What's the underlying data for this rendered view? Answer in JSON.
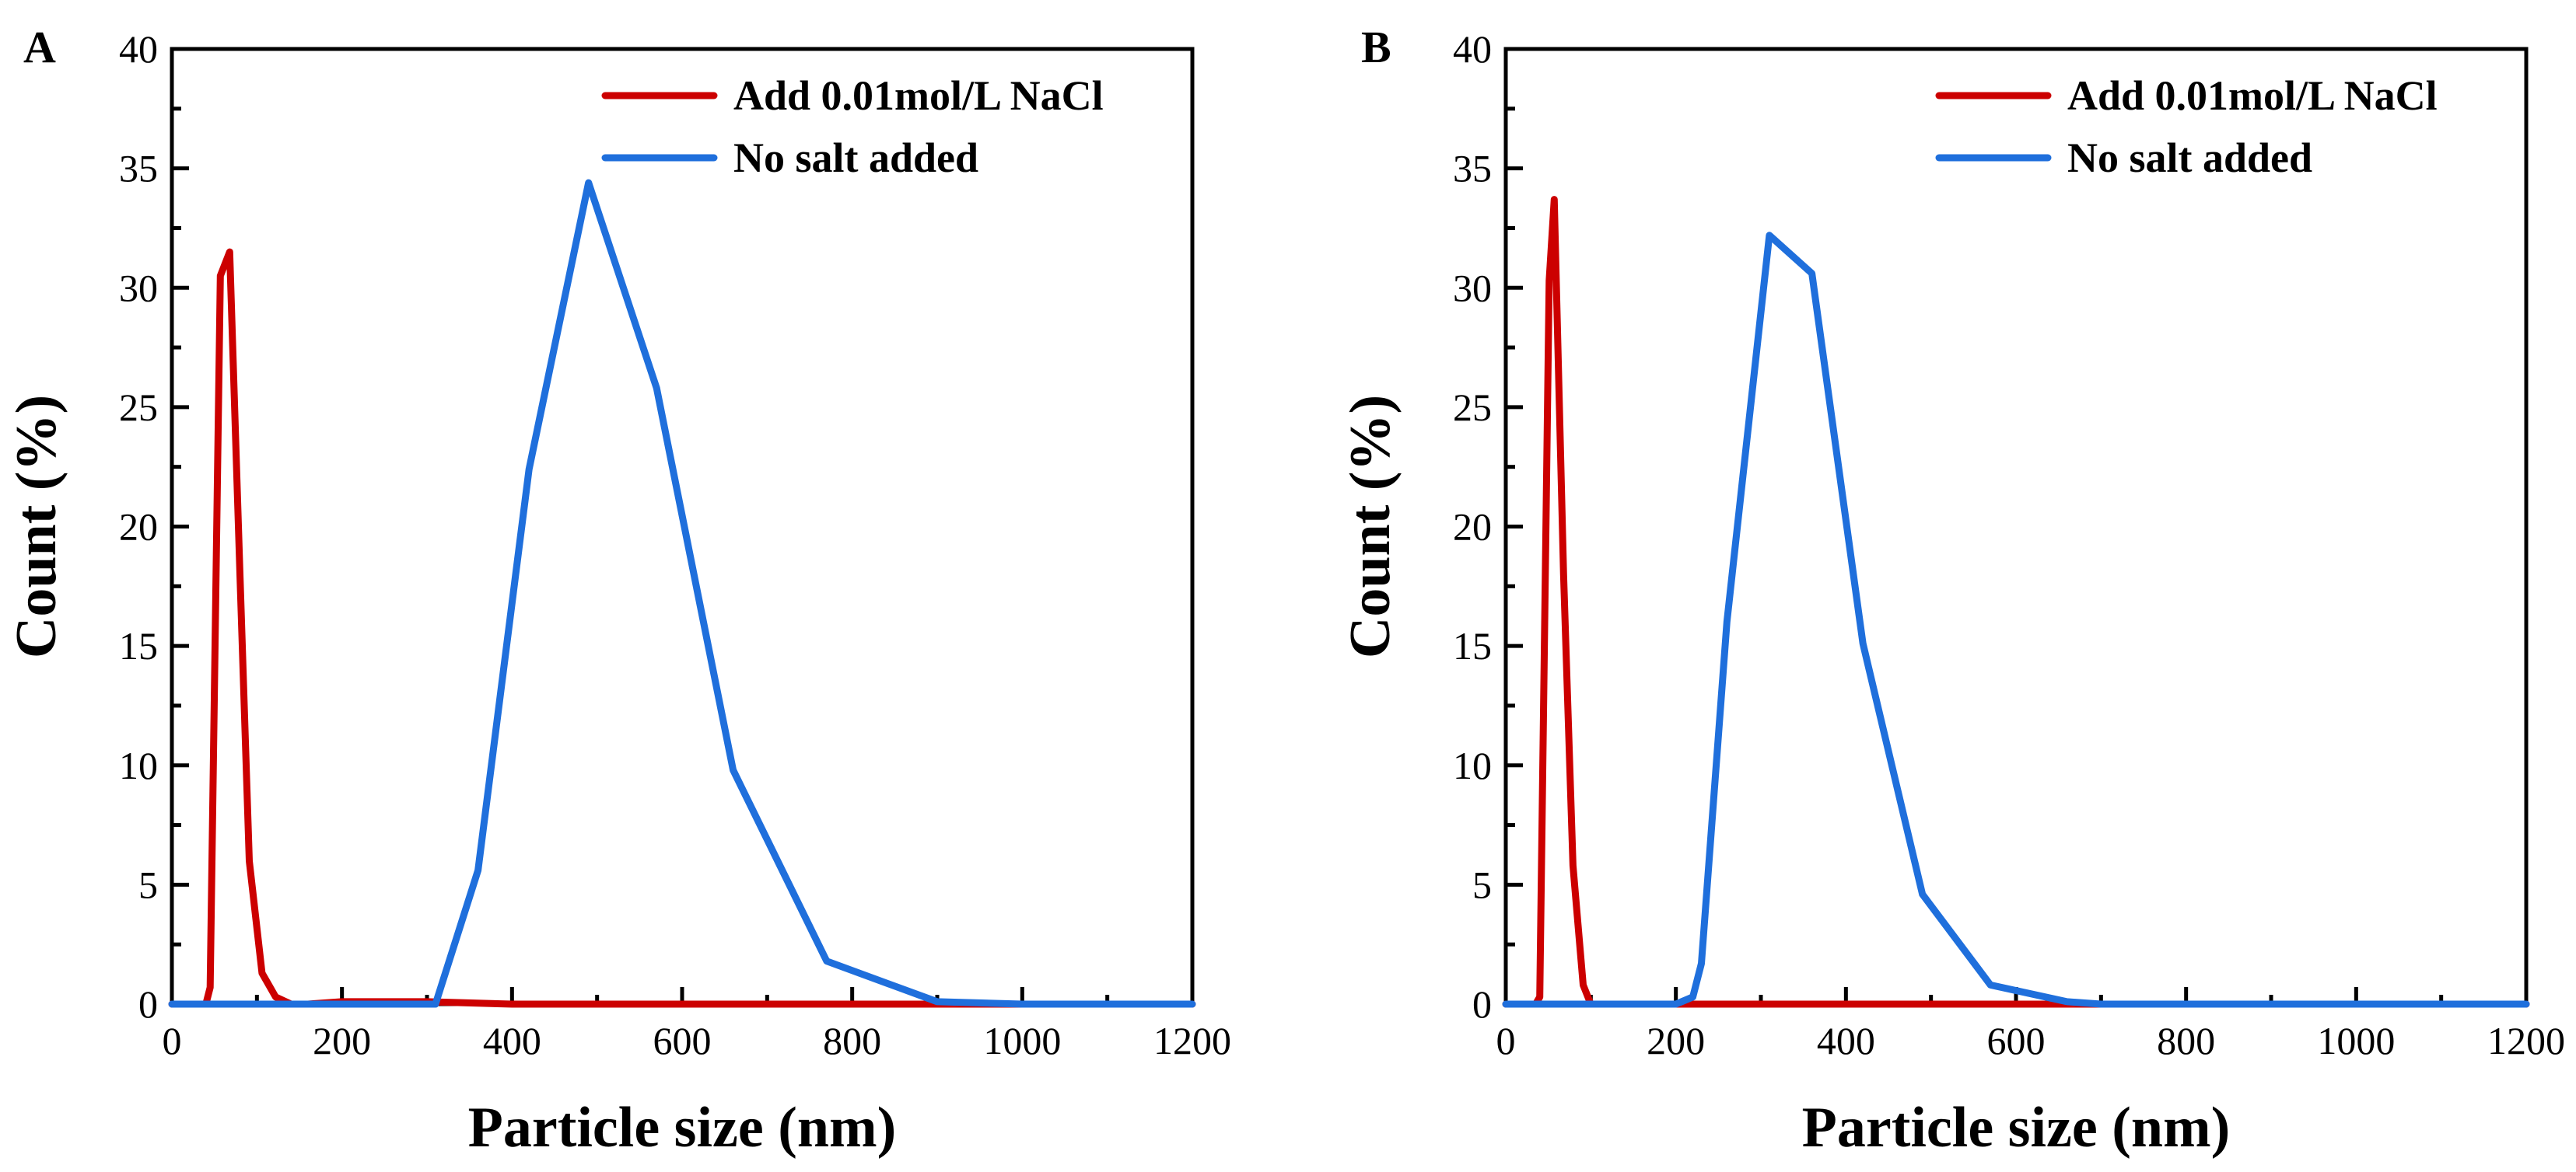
{
  "chart_data": [
    {
      "panel_label": "A",
      "type": "line",
      "xlabel": "Particle size (nm)",
      "ylabel": "Count (%)",
      "xlim": [
        0,
        1200
      ],
      "ylim": [
        0,
        40
      ],
      "xticks": [
        0,
        200,
        400,
        600,
        800,
        1000,
        1200
      ],
      "xtick_labels": [
        "0",
        "200",
        "400",
        "600",
        "800",
        "1000",
        "1200"
      ],
      "yticks": [
        0,
        5,
        10,
        15,
        20,
        25,
        30,
        35,
        40
      ],
      "ytick_labels": [
        "0",
        "5",
        "10",
        "15",
        "20",
        "25",
        "30",
        "35",
        "40"
      ],
      "legend_position": "top-right",
      "series": [
        {
          "name": "Add 0.01mol/L NaCl",
          "color": "#cc0000",
          "x": [
            0,
            40,
            45,
            57,
            68,
            80,
            91,
            106,
            122,
            140,
            160,
            200,
            250,
            300,
            400,
            500,
            600,
            800,
            1000,
            1200
          ],
          "y": [
            0,
            0,
            0.7,
            30.5,
            31.5,
            18,
            6,
            1.3,
            0.3,
            0,
            0,
            0.1,
            0.1,
            0.1,
            0,
            0,
            0,
            0,
            0,
            0
          ]
        },
        {
          "name": "No salt added",
          "color": "#1f6fdc",
          "x": [
            0,
            100,
            200,
            310,
            360,
            420,
            490,
            570,
            660,
            770,
            900,
            1000,
            1200
          ],
          "y": [
            0,
            0,
            0,
            0,
            5.6,
            22.4,
            34.4,
            25.8,
            9.8,
            1.8,
            0.1,
            0,
            0
          ]
        }
      ]
    },
    {
      "panel_label": "B",
      "type": "line",
      "xlabel": "Particle size (nm)",
      "ylabel": "Count (%)",
      "xlim": [
        0,
        1200
      ],
      "ylim": [
        0,
        40
      ],
      "xticks": [
        0,
        200,
        400,
        600,
        800,
        1000,
        1200
      ],
      "xtick_labels": [
        "0",
        "200",
        "400",
        "600",
        "800",
        "1000",
        "1200"
      ],
      "yticks": [
        0,
        5,
        10,
        15,
        20,
        25,
        30,
        35,
        40
      ],
      "ytick_labels": [
        "0",
        "5",
        "10",
        "15",
        "20",
        "25",
        "30",
        "35",
        "40"
      ],
      "legend_position": "top-right",
      "series": [
        {
          "name": "Add 0.01mol/L NaCl",
          "color": "#cc0000",
          "x": [
            0,
            35,
            40,
            51,
            57,
            68,
            79,
            91,
            100,
            200,
            400,
            600,
            800,
            1000,
            1200
          ],
          "y": [
            0,
            0,
            0.3,
            30.3,
            33.7,
            18,
            5.8,
            0.8,
            0,
            0,
            0,
            0,
            0,
            0,
            0
          ]
        },
        {
          "name": "No salt added",
          "color": "#1f6fdc",
          "x": [
            0,
            100,
            200,
            220,
            230,
            260,
            310,
            360,
            420,
            490,
            570,
            660,
            700,
            800,
            1000,
            1200
          ],
          "y": [
            0,
            0,
            0,
            0.3,
            1.7,
            16,
            32.2,
            30.6,
            15.1,
            4.6,
            0.8,
            0.1,
            0,
            0,
            0,
            0
          ]
        }
      ]
    }
  ]
}
